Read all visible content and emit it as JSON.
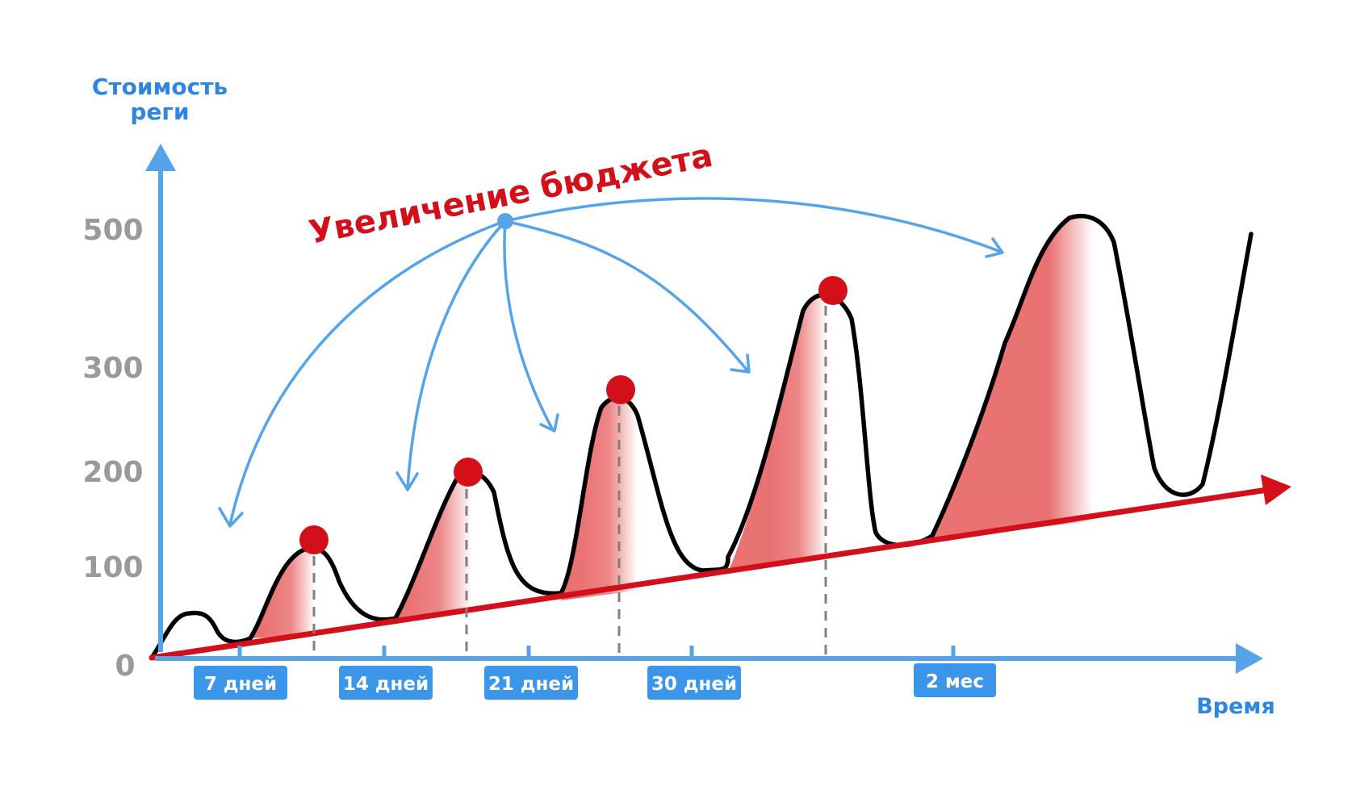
{
  "y_axis": {
    "title_line1": "Стоимость",
    "title_line2": "реги",
    "ticks": [
      "500",
      "300",
      "200",
      "100",
      "0"
    ]
  },
  "x_axis": {
    "title": "Время",
    "chips": [
      "7 дней",
      "14 дней",
      "21 дней",
      "30 дней",
      "2 мес"
    ]
  },
  "headline": "Увеличение бюджета",
  "colors": {
    "axis": "#55a4ea",
    "trend": "#d3101a",
    "fill": "#e86a6a",
    "curve": "#000000",
    "peak": "#d3101a",
    "guide": "#888888"
  }
}
